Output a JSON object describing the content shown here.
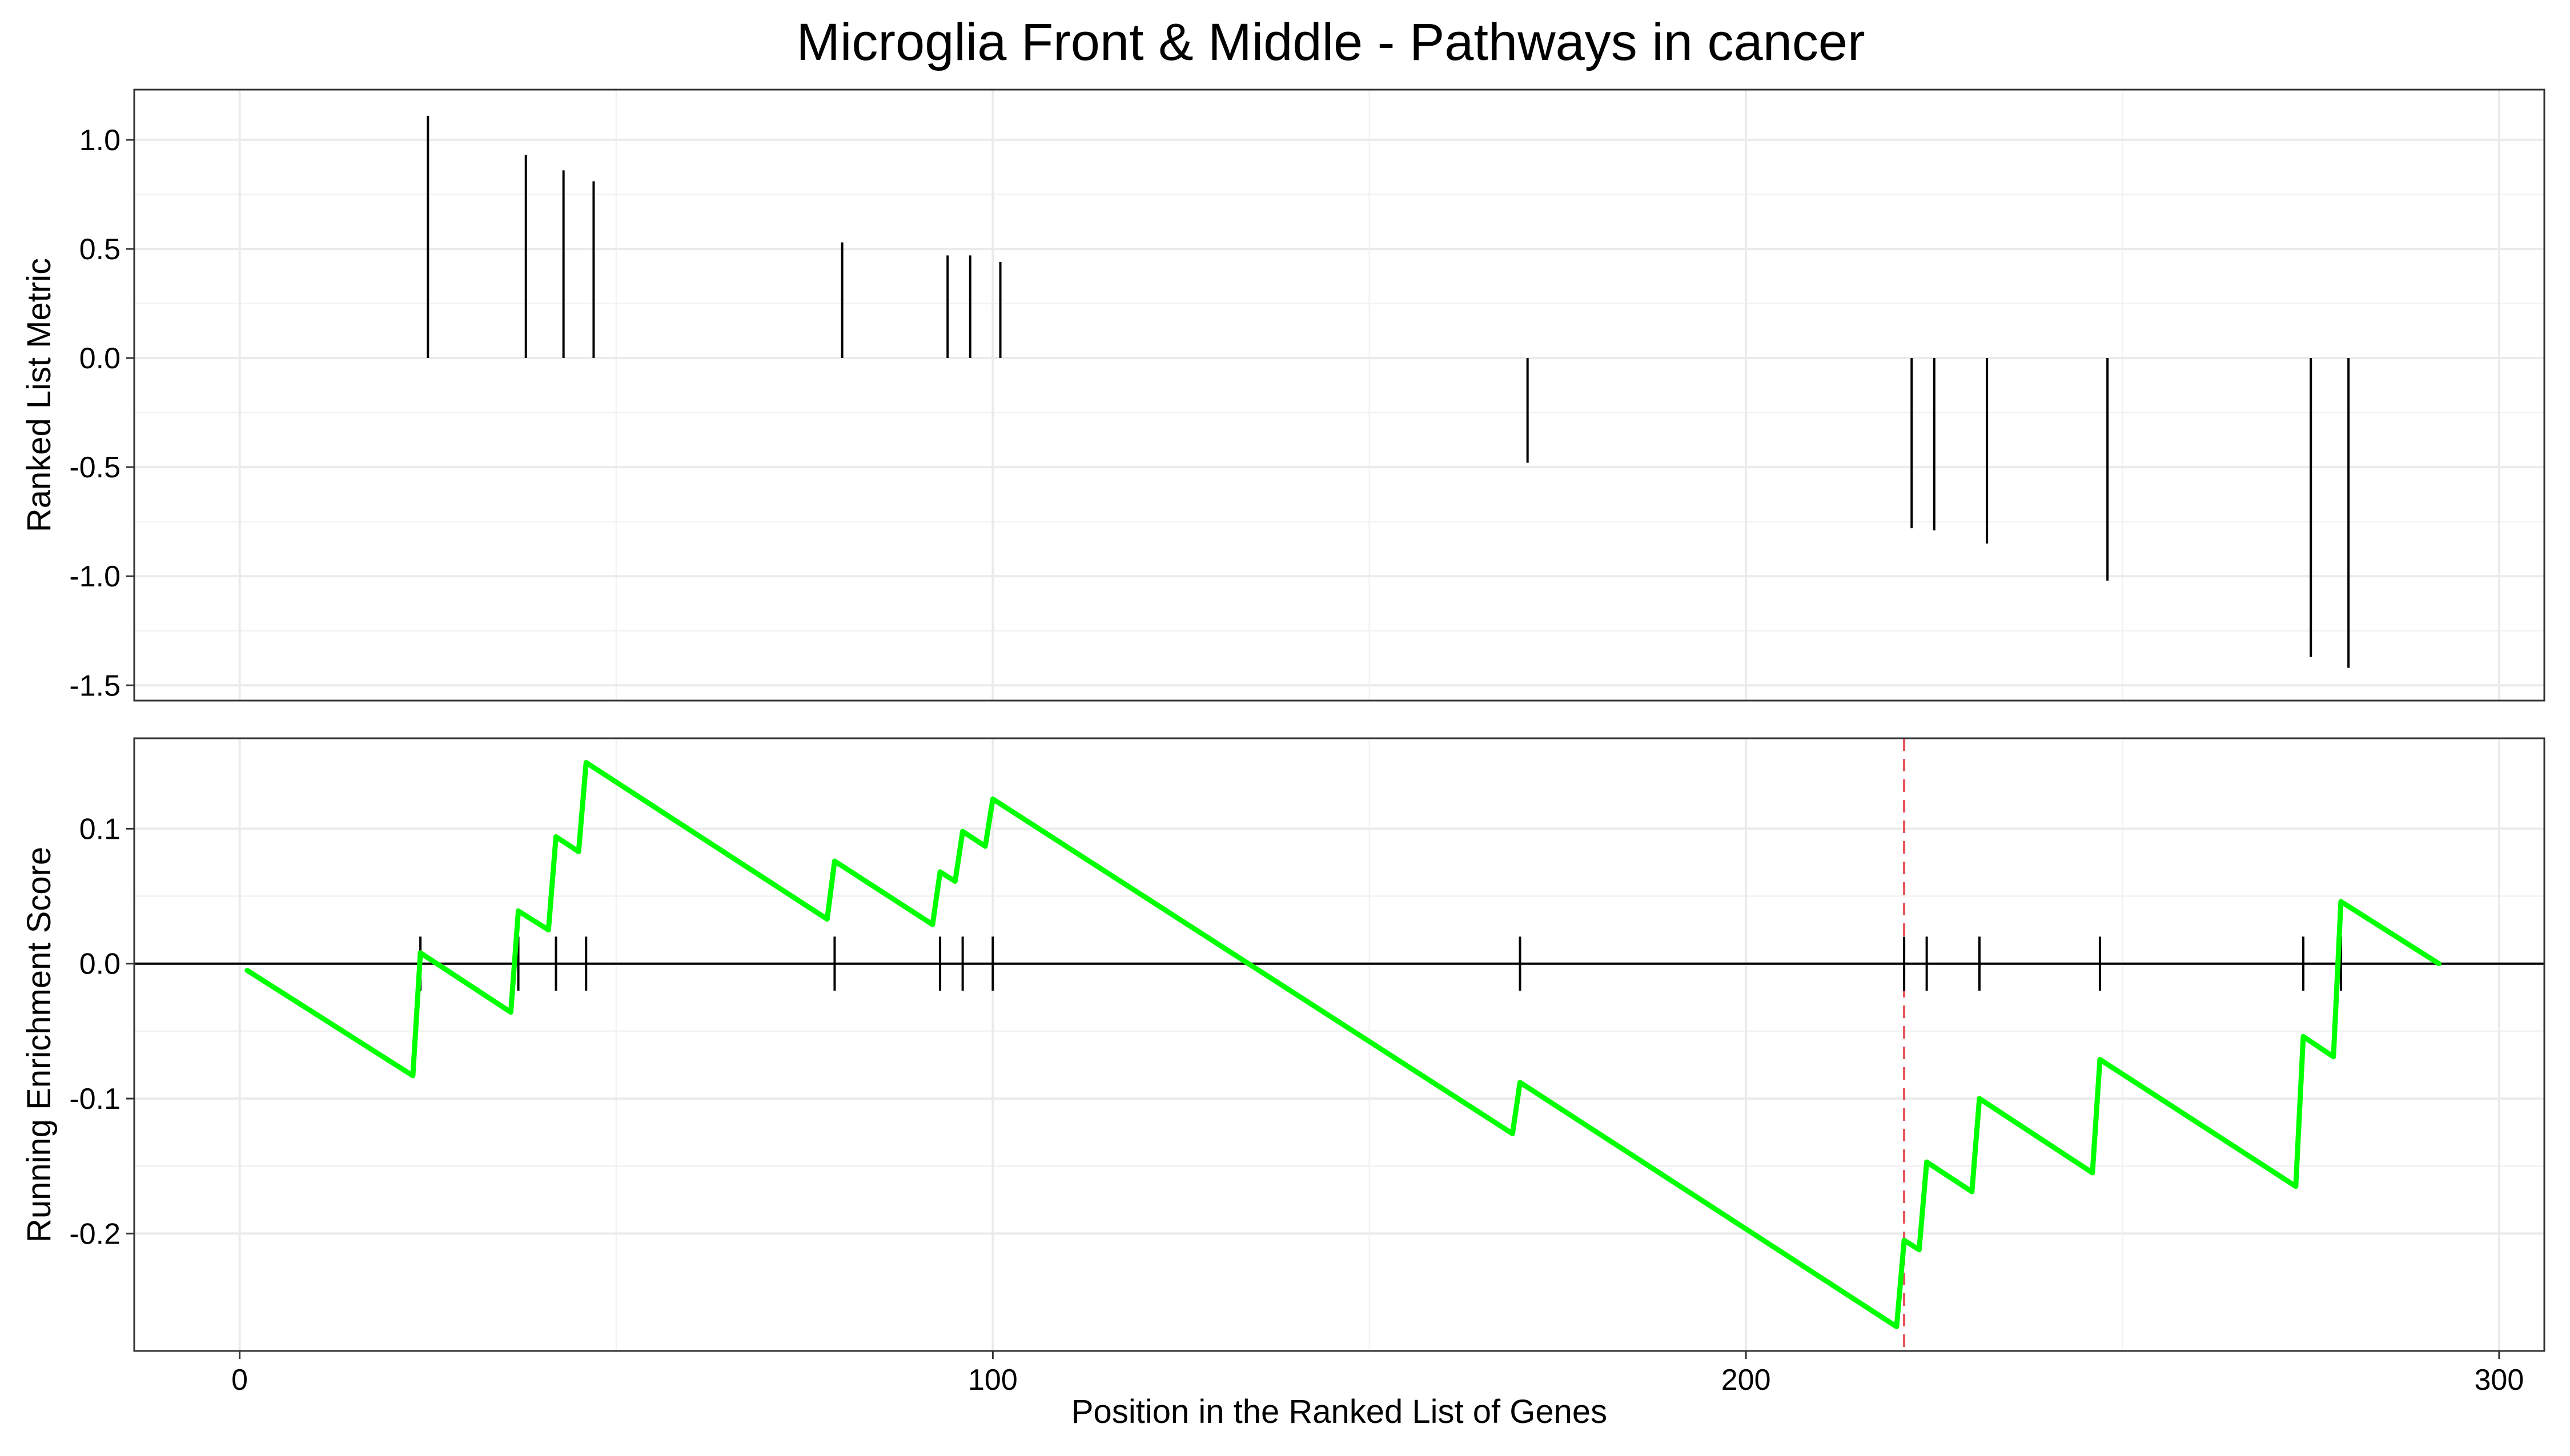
{
  "chart_data": {
    "title": "Microglia Front & Middle - Pathways in cancer",
    "xlabel": "Position in the Ranked List of Genes",
    "xlim": [
      -14,
      306
    ],
    "x_ticks": [
      0,
      100,
      200,
      300
    ],
    "panels": [
      {
        "id": "ranked-metric",
        "type": "bar",
        "ylabel": "Ranked List Metric",
        "ylim": [
          -1.57,
          1.23
        ],
        "y_ticks": [
          -1.5,
          -1.0,
          -0.5,
          0.0,
          0.5,
          1.0
        ],
        "y_tick_labels": [
          "-1.5",
          "-1.0",
          "-0.5",
          "0.0",
          "0.5",
          "1.0"
        ],
        "bars": [
          {
            "x": 25,
            "y": 1.11
          },
          {
            "x": 38,
            "y": 0.93
          },
          {
            "x": 43,
            "y": 0.86
          },
          {
            "x": 47,
            "y": 0.81
          },
          {
            "x": 80,
            "y": 0.53
          },
          {
            "x": 94,
            "y": 0.47
          },
          {
            "x": 97,
            "y": 0.47
          },
          {
            "x": 101,
            "y": 0.44
          },
          {
            "x": 171,
            "y": -0.48
          },
          {
            "x": 222,
            "y": -0.78
          },
          {
            "x": 225,
            "y": -0.79
          },
          {
            "x": 232,
            "y": -0.85
          },
          {
            "x": 248,
            "y": -1.02
          },
          {
            "x": 275,
            "y": -1.37
          },
          {
            "x": 280,
            "y": -1.42
          }
        ]
      },
      {
        "id": "running-es",
        "type": "line",
        "ylabel": "Running Enrichment Score",
        "ylim": [
          -0.287,
          0.167
        ],
        "y_ticks": [
          -0.2,
          -0.1,
          0.0,
          0.1
        ],
        "y_tick_labels": [
          "-0.2",
          "-0.1",
          "0.0",
          "0.1"
        ],
        "line_color": "#00ff00",
        "max_dev_color": "#e8505b",
        "max_deviation_x": 221,
        "hit_positions": [
          24,
          37,
          42,
          46,
          79,
          93,
          96,
          100,
          170,
          221,
          224,
          231,
          247,
          274,
          279
        ],
        "running_es": [
          {
            "x": 1,
            "y": -0.005
          },
          {
            "x": 23,
            "y": -0.083
          },
          {
            "x": 24,
            "y": 0.008
          },
          {
            "x": 36,
            "y": -0.036
          },
          {
            "x": 37,
            "y": 0.039
          },
          {
            "x": 41,
            "y": 0.025
          },
          {
            "x": 42,
            "y": 0.094
          },
          {
            "x": 45,
            "y": 0.083
          },
          {
            "x": 46,
            "y": 0.149
          },
          {
            "x": 78,
            "y": 0.033
          },
          {
            "x": 79,
            "y": 0.076
          },
          {
            "x": 92,
            "y": 0.029
          },
          {
            "x": 93,
            "y": 0.068
          },
          {
            "x": 95,
            "y": 0.061
          },
          {
            "x": 96,
            "y": 0.098
          },
          {
            "x": 99,
            "y": 0.087
          },
          {
            "x": 100,
            "y": 0.122
          },
          {
            "x": 169,
            "y": -0.126
          },
          {
            "x": 170,
            "y": -0.088
          },
          {
            "x": 220,
            "y": -0.269
          },
          {
            "x": 221,
            "y": -0.205
          },
          {
            "x": 223,
            "y": -0.212
          },
          {
            "x": 224,
            "y": -0.147
          },
          {
            "x": 230,
            "y": -0.169
          },
          {
            "x": 231,
            "y": -0.1
          },
          {
            "x": 246,
            "y": -0.155
          },
          {
            "x": 247,
            "y": -0.071
          },
          {
            "x": 273,
            "y": -0.165
          },
          {
            "x": 274,
            "y": -0.054
          },
          {
            "x": 278,
            "y": -0.069
          },
          {
            "x": 279,
            "y": 0.046
          },
          {
            "x": 292,
            "y": 0.0
          }
        ]
      }
    ]
  }
}
